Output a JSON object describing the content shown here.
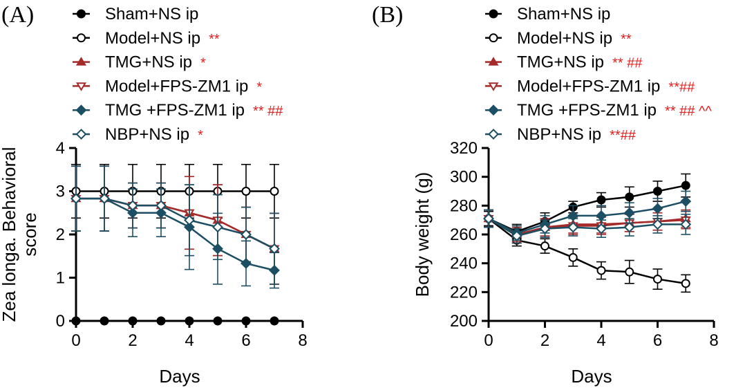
{
  "chart_data": [
    {
      "type": "line",
      "panel_label": "(A)",
      "xlabel": "Days",
      "ylabel": [
        "Zea longa. Behavioral",
        "score"
      ],
      "x": [
        0,
        1,
        2,
        3,
        4,
        5,
        6,
        7
      ],
      "xlim": [
        0,
        8
      ],
      "ylim": [
        0,
        4
      ],
      "xticks": [
        0,
        2,
        4,
        6,
        8
      ],
      "yticks": [
        0,
        1,
        2,
        3,
        4
      ],
      "xtick_labels": [
        "0",
        "2",
        "4",
        "6",
        "8"
      ],
      "ytick_labels": [
        "0",
        "1",
        "2",
        "3",
        "4"
      ],
      "series": [
        {
          "name": "Sham+NS ip",
          "sig": "",
          "color": "#000000",
          "marker": "circle",
          "filled": true,
          "values": [
            0,
            0,
            0,
            0,
            0,
            0,
            0,
            0
          ],
          "errors": [
            0,
            0,
            0,
            0,
            0,
            0,
            0,
            0
          ]
        },
        {
          "name": "Model+NS ip",
          "sig": "**",
          "color": "#000000",
          "marker": "circle",
          "filled": false,
          "values": [
            3,
            3,
            3,
            3,
            3,
            3,
            3,
            3
          ],
          "errors": [
            0.62,
            0.62,
            0.62,
            0.62,
            0.62,
            0.62,
            0.62,
            0.62
          ]
        },
        {
          "name": "TMG+NS ip",
          "sig": "*",
          "color": "#a52a2a",
          "marker": "triangle-up",
          "filled": true,
          "values": [
            2.83,
            2.83,
            2.67,
            2.67,
            2.5,
            2.33,
            2.0,
            1.67
          ],
          "errors": [
            0.75,
            0.75,
            0.52,
            0.52,
            0.84,
            0.82,
            0.63,
            0.82
          ]
        },
        {
          "name": "Model+FPS-ZM1 ip",
          "sig": "*",
          "color": "#a52a2a",
          "marker": "triangle-down",
          "filled": false,
          "values": [
            2.83,
            2.83,
            2.67,
            2.67,
            2.5,
            2.33,
            2.0,
            1.67
          ],
          "errors": [
            0.75,
            0.75,
            0.52,
            0.52,
            0.84,
            0.82,
            0.63,
            0.82
          ]
        },
        {
          "name": "TMG +FPS-ZM1 ip",
          "sig": "** ##",
          "color": "#1c4f63",
          "marker": "diamond",
          "filled": true,
          "values": [
            2.83,
            2.83,
            2.5,
            2.5,
            2.17,
            1.67,
            1.33,
            1.17
          ],
          "errors": [
            0.75,
            0.75,
            0.55,
            0.55,
            0.98,
            0.82,
            0.52,
            0.41
          ]
        },
        {
          "name": "NBP+NS ip",
          "sig": "*",
          "color": "#1c4f63",
          "marker": "diamond",
          "filled": false,
          "values": [
            2.83,
            2.83,
            2.67,
            2.67,
            2.33,
            2.17,
            2.0,
            1.67
          ],
          "errors": [
            0.75,
            0.75,
            0.52,
            0.52,
            0.82,
            0.75,
            0.63,
            0.82
          ]
        }
      ]
    },
    {
      "type": "line",
      "panel_label": "(B)",
      "xlabel": "Days",
      "ylabel": [
        "Body weight (g)"
      ],
      "x": [
        0,
        1,
        2,
        3,
        4,
        5,
        6,
        7
      ],
      "xlim": [
        0,
        8
      ],
      "ylim": [
        200,
        320
      ],
      "xticks": [
        0,
        2,
        4,
        6,
        8
      ],
      "yticks": [
        200,
        220,
        240,
        260,
        280,
        300,
        320
      ],
      "xtick_labels": [
        "0",
        "2",
        "4",
        "6",
        "8"
      ],
      "ytick_labels": [
        "200",
        "220",
        "240",
        "260",
        "280",
        "300",
        "320"
      ],
      "series": [
        {
          "name": "Sham+NS ip",
          "sig": "",
          "color": "#000000",
          "marker": "circle",
          "filled": true,
          "values": [
            271,
            262,
            269,
            279,
            284,
            286,
            290,
            294
          ],
          "errors": [
            5,
            5,
            6,
            4,
            5,
            7,
            7,
            8
          ]
        },
        {
          "name": "Model+NS ip",
          "sig": "**",
          "color": "#000000",
          "marker": "circle",
          "filled": false,
          "values": [
            271,
            256,
            252,
            244,
            235,
            234,
            229,
            226
          ],
          "errors": [
            5,
            4,
            5,
            6,
            6,
            8,
            7,
            6
          ]
        },
        {
          "name": "TMG+NS ip",
          "sig": "** ##",
          "color": "#a52a2a",
          "marker": "triangle-up",
          "filled": true,
          "values": [
            271,
            260,
            265,
            267,
            267,
            268,
            269,
            271
          ],
          "errors": [
            6,
            5,
            6,
            6,
            6,
            6,
            6,
            6
          ]
        },
        {
          "name": "Model+FPS-ZM1 ip",
          "sig": "**##",
          "color": "#a52a2a",
          "marker": "triangle-down",
          "filled": false,
          "values": [
            271,
            259,
            264,
            266,
            266,
            268,
            269,
            270
          ],
          "errors": [
            6,
            5,
            6,
            6,
            6,
            6,
            6,
            6
          ]
        },
        {
          "name": "TMG +FPS-ZM1 ip",
          "sig": "** ## ^^",
          "color": "#1c4f63",
          "marker": "diamond",
          "filled": true,
          "values": [
            271,
            261,
            267,
            273,
            273,
            275,
            278,
            283
          ],
          "errors": [
            6,
            5,
            6,
            7,
            7,
            7,
            7,
            7
          ]
        },
        {
          "name": "NBP+NS ip",
          "sig": "**##",
          "color": "#1c4f63",
          "marker": "diamond",
          "filled": false,
          "values": [
            271,
            259,
            264,
            265,
            264,
            265,
            267,
            267
          ],
          "errors": [
            6,
            5,
            6,
            6,
            6,
            6,
            6,
            7
          ]
        }
      ]
    }
  ]
}
